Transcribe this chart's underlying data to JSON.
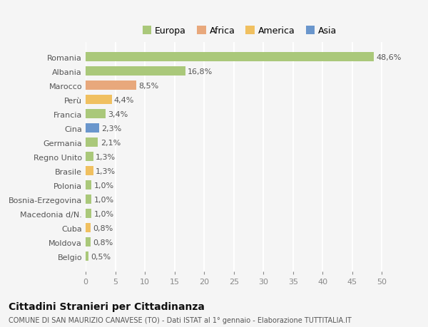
{
  "countries": [
    "Romania",
    "Albania",
    "Marocco",
    "Perù",
    "Francia",
    "Cina",
    "Germania",
    "Regno Unito",
    "Brasile",
    "Polonia",
    "Bosnia-Erzegovina",
    "Macedonia d/N.",
    "Cuba",
    "Moldova",
    "Belgio"
  ],
  "values": [
    48.6,
    16.8,
    8.5,
    4.4,
    3.4,
    2.3,
    2.1,
    1.3,
    1.3,
    1.0,
    1.0,
    1.0,
    0.8,
    0.8,
    0.5
  ],
  "labels": [
    "48,6%",
    "16,8%",
    "8,5%",
    "4,4%",
    "3,4%",
    "2,3%",
    "2,1%",
    "1,3%",
    "1,3%",
    "1,0%",
    "1,0%",
    "1,0%",
    "0,8%",
    "0,8%",
    "0,5%"
  ],
  "continents": [
    "Europa",
    "Europa",
    "Africa",
    "America",
    "Europa",
    "Asia",
    "Europa",
    "Europa",
    "America",
    "Europa",
    "Europa",
    "Europa",
    "America",
    "Europa",
    "Europa"
  ],
  "colors": {
    "Europa": "#aac87a",
    "Africa": "#e8a87c",
    "America": "#f0c060",
    "Asia": "#6a96cc"
  },
  "legend_order": [
    "Europa",
    "Africa",
    "America",
    "Asia"
  ],
  "legend_colors": [
    "#aac87a",
    "#e8a87c",
    "#f0c060",
    "#6a96cc"
  ],
  "xlim": [
    0,
    52
  ],
  "xticks": [
    0,
    5,
    10,
    15,
    20,
    25,
    30,
    35,
    40,
    45,
    50
  ],
  "title": "Cittadini Stranieri per Cittadinanza",
  "subtitle": "COMUNE DI SAN MAURIZIO CANAVESE (TO) - Dati ISTAT al 1° gennaio - Elaborazione TUTTITALIA.IT",
  "background_color": "#f5f5f5",
  "grid_color": "#ffffff",
  "label_fontsize": 8,
  "bar_height": 0.65,
  "ytick_fontsize": 8,
  "xtick_fontsize": 8
}
